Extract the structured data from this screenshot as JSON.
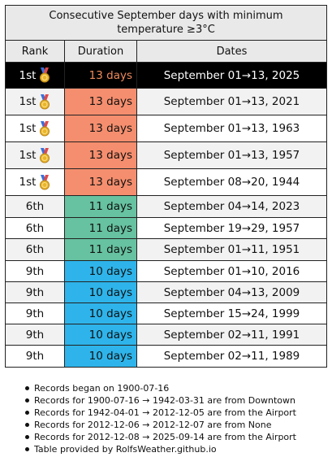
{
  "title": "Consecutive September days with minimum temperature ≥3°C",
  "headers": {
    "rank": "Rank",
    "duration": "Duration",
    "dates": "Dates"
  },
  "colors": {
    "current_row_bg": "#000000",
    "current_duration_text": "#f08a5a",
    "rank1_bg": "#f58e6e",
    "rank6_bg": "#66c2a0",
    "rank9_bg": "#2eb4ea",
    "alt_row_bg": "#f2f2f2",
    "header_bg": "#e9e9e9"
  },
  "rows": [
    {
      "rank": "1st",
      "medal": "gold-medal-icon",
      "duration": "13 days",
      "dates": "September 01→13, 2025",
      "current": true,
      "group": "rank1"
    },
    {
      "rank": "1st",
      "medal": "gold-medal-icon",
      "duration": "13 days",
      "dates": "September 01→13, 2021",
      "current": false,
      "group": "rank1"
    },
    {
      "rank": "1st",
      "medal": "gold-medal-icon",
      "duration": "13 days",
      "dates": "September 01→13, 1963",
      "current": false,
      "group": "rank1"
    },
    {
      "rank": "1st",
      "medal": "gold-medal-icon",
      "duration": "13 days",
      "dates": "September 01→13, 1957",
      "current": false,
      "group": "rank1"
    },
    {
      "rank": "1st",
      "medal": "gold-medal-icon",
      "duration": "13 days",
      "dates": "September 08→20, 1944",
      "current": false,
      "group": "rank1"
    },
    {
      "rank": "6th",
      "medal": "",
      "duration": "11 days",
      "dates": "September 04→14, 2023",
      "current": false,
      "group": "rank6"
    },
    {
      "rank": "6th",
      "medal": "",
      "duration": "11 days",
      "dates": "September 19→29, 1957",
      "current": false,
      "group": "rank6"
    },
    {
      "rank": "6th",
      "medal": "",
      "duration": "11 days",
      "dates": "September 01→11, 1951",
      "current": false,
      "group": "rank6"
    },
    {
      "rank": "9th",
      "medal": "",
      "duration": "10 days",
      "dates": "September 01→10, 2016",
      "current": false,
      "group": "rank9"
    },
    {
      "rank": "9th",
      "medal": "",
      "duration": "10 days",
      "dates": "September 04→13, 2009",
      "current": false,
      "group": "rank9"
    },
    {
      "rank": "9th",
      "medal": "",
      "duration": "10 days",
      "dates": "September 15→24, 1999",
      "current": false,
      "group": "rank9"
    },
    {
      "rank": "9th",
      "medal": "",
      "duration": "10 days",
      "dates": "September 02→11, 1991",
      "current": false,
      "group": "rank9"
    },
    {
      "rank": "9th",
      "medal": "",
      "duration": "10 days",
      "dates": "September 02→11, 1989",
      "current": false,
      "group": "rank9"
    }
  ],
  "notes": [
    "Records began on 1900-07-16",
    "Records for 1900-07-16 → 1942-03-31 are from Downtown",
    "Records for 1942-04-01 → 2012-12-05 are from the Airport",
    "Records for 2012-12-06 → 2012-12-07 are from None",
    "Records for 2012-12-08 → 2025-09-14 are from the Airport",
    "Table provided by RolfsWeather.github.io"
  ]
}
